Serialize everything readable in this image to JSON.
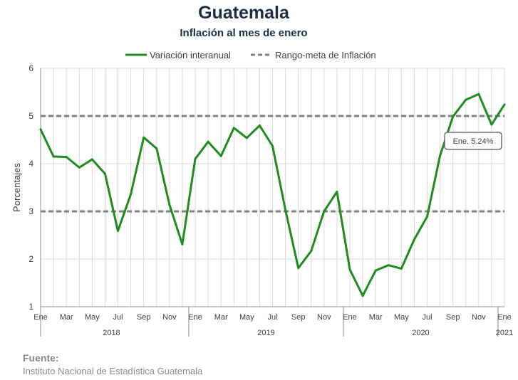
{
  "header": {
    "title": "Guatemala",
    "subtitle": "Inflación al mes de enero"
  },
  "source": {
    "label": "Fuente:",
    "text": "Instituto Nacional de Estadística Guatemala"
  },
  "colors": {
    "series": "#1e8c1e",
    "target": "#808080",
    "grid": "#d9d9d9",
    "axis": "#8c8c8c",
    "text": "#404040",
    "title": "#1f2d44"
  },
  "chart_data": {
    "type": "line",
    "title": "Guatemala",
    "subtitle": "Inflación al mes de enero",
    "ylabel": "Porcentajes",
    "ylim": [
      1,
      6
    ],
    "yticks": [
      1,
      2,
      3,
      4,
      5,
      6
    ],
    "grid": true,
    "legend_position": "top",
    "legend": [
      "Variación interanual",
      "Rango-meta de Inflación"
    ],
    "x": [
      "2018-01",
      "2018-02",
      "2018-03",
      "2018-04",
      "2018-05",
      "2018-06",
      "2018-07",
      "2018-08",
      "2018-09",
      "2018-10",
      "2018-11",
      "2018-12",
      "2019-01",
      "2019-02",
      "2019-03",
      "2019-04",
      "2019-05",
      "2019-06",
      "2019-07",
      "2019-08",
      "2019-09",
      "2019-10",
      "2019-11",
      "2019-12",
      "2020-01",
      "2020-02",
      "2020-03",
      "2020-04",
      "2020-05",
      "2020-06",
      "2020-07",
      "2020-08",
      "2020-09",
      "2020-10",
      "2020-11",
      "2020-12",
      "2021-01"
    ],
    "month_labels": [
      "Ene",
      "",
      "Mar",
      "",
      "May",
      "",
      "Jul",
      "",
      "Sep",
      "",
      "Nov",
      "",
      "Ene",
      "",
      "Mar",
      "",
      "May",
      "",
      "Jul",
      "",
      "Sep",
      "",
      "Nov",
      "",
      "Ene",
      "",
      "Mar",
      "",
      "May",
      "",
      "Jul",
      "",
      "Sep",
      "",
      "Nov",
      "",
      "Ene"
    ],
    "year_labels": [
      {
        "label": "2018",
        "start": 0,
        "end": 11
      },
      {
        "label": "2019",
        "start": 12,
        "end": 23
      },
      {
        "label": "2020",
        "start": 24,
        "end": 35
      },
      {
        "label": "2021",
        "start": 36,
        "end": 36
      }
    ],
    "series": [
      {
        "name": "Variación interanual",
        "values": [
          4.72,
          4.15,
          4.14,
          3.92,
          4.09,
          3.79,
          2.59,
          3.36,
          4.55,
          4.32,
          3.14,
          2.31,
          4.1,
          4.46,
          4.16,
          4.75,
          4.54,
          4.8,
          4.37,
          3.03,
          1.81,
          2.17,
          3.0,
          3.41,
          1.78,
          1.23,
          1.76,
          1.87,
          1.8,
          2.41,
          2.89,
          4.17,
          4.99,
          5.34,
          5.46,
          4.82,
          5.24
        ]
      }
    ],
    "target_range": {
      "name": "Rango-meta de Inflación",
      "lower": 3,
      "upper": 5
    },
    "annotation": {
      "text": "Ene. 5.24%",
      "index": 36
    }
  }
}
